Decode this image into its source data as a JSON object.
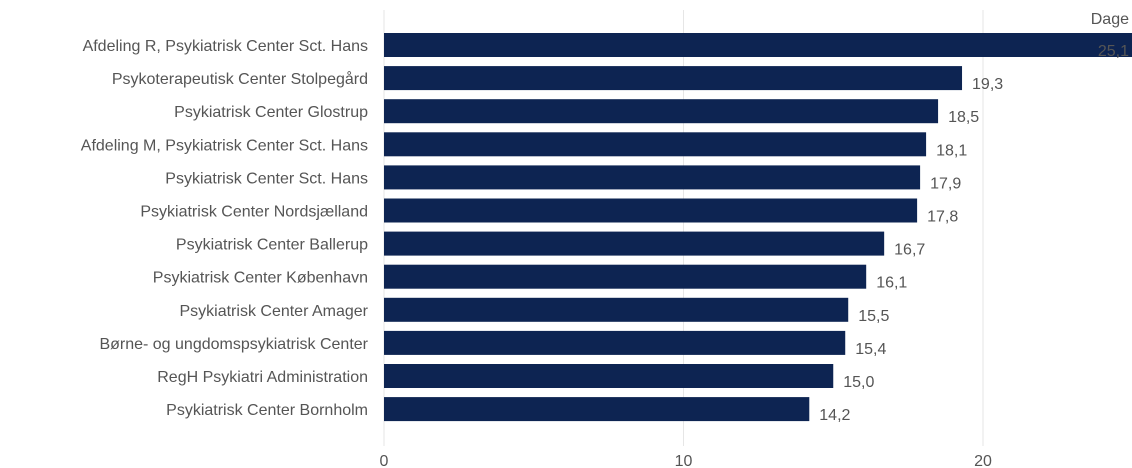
{
  "chart_data": {
    "type": "bar",
    "orientation": "horizontal",
    "unit_label": "Dage",
    "categories": [
      "Afdeling R, Psykiatrisk Center Sct. Hans",
      "Psykoterapeutisk Center Stolpegård",
      "Psykiatrisk Center Glostrup",
      "Afdeling M, Psykiatrisk Center Sct. Hans",
      "Psykiatrisk Center Sct. Hans",
      "Psykiatrisk Center Nordsjælland",
      "Psykiatrisk Center Ballerup",
      "Psykiatrisk Center København",
      "Psykiatrisk Center Amager",
      "Børne- og ungdomspsykiatrisk Center",
      "RegH Psykiatri Administration",
      "Psykiatrisk Center Bornholm"
    ],
    "values": [
      25.1,
      19.3,
      18.5,
      18.1,
      17.9,
      17.8,
      16.7,
      16.1,
      15.5,
      15.4,
      15.0,
      14.2
    ],
    "value_labels": [
      "25,1",
      "19,3",
      "18,5",
      "18,1",
      "17,9",
      "17,8",
      "16,7",
      "16,1",
      "15,5",
      "15,4",
      "15,0",
      "14,2"
    ],
    "xlim": [
      0,
      25
    ],
    "x_ticks": [
      0,
      10,
      20
    ],
    "x_tick_labels": [
      "0",
      "10",
      "20"
    ],
    "grid": true,
    "bar_color": "#0d2452",
    "grid_color": "#e6e6e6"
  }
}
